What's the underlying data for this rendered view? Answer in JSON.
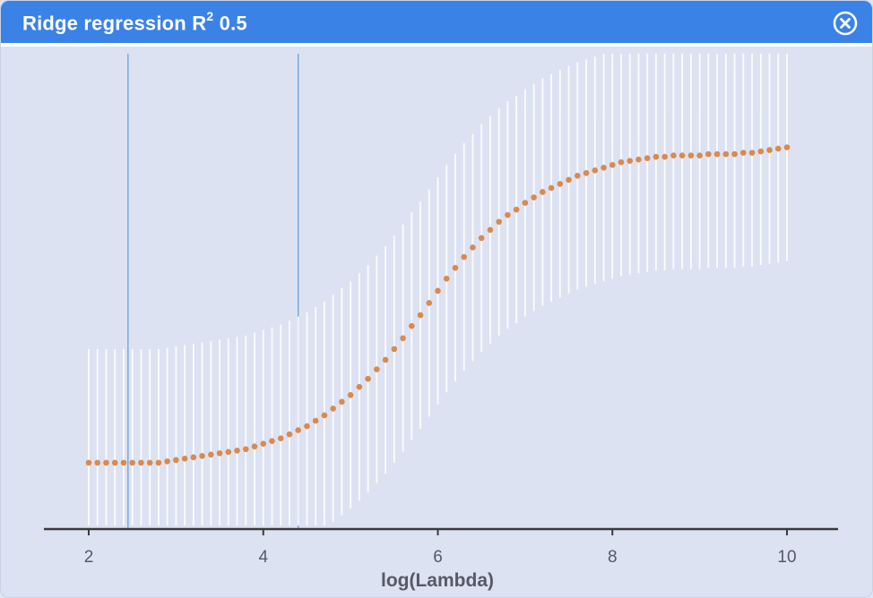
{
  "window": {
    "title_main": "Ridge regression R",
    "title_sup": "2",
    "title_value": " 0.5",
    "close_icon": "close-circle-icon"
  },
  "colors": {
    "titlebar": "#3b82e6",
    "background": "#dce2f1",
    "points": "#d98a4e",
    "errorbars": "#ffffff",
    "reference_lines": "#6ea0d8",
    "axis": "#3a3a3a"
  },
  "chart_data": {
    "type": "scatter",
    "title": "",
    "xlabel": "log(Lambda)",
    "ylabel": "",
    "xlim": [
      1.5,
      10.6
    ],
    "xticks": [
      2,
      4,
      6,
      8,
      10
    ],
    "xtick_labels": [
      "2",
      "4",
      "6",
      "8",
      "10"
    ],
    "grid": false,
    "vlines": [
      2.45,
      4.4
    ],
    "series": [
      {
        "x": [
          2.0,
          2.1,
          2.2,
          2.3,
          2.4,
          2.5,
          2.6,
          2.7,
          2.8,
          2.9,
          3.0,
          3.1,
          3.2,
          3.3,
          3.4,
          3.5,
          3.6,
          3.7,
          3.8,
          3.9,
          4.0,
          4.1,
          4.2,
          4.3,
          4.4,
          4.5,
          4.6,
          4.7,
          4.8,
          4.9,
          5.0,
          5.1,
          5.2,
          5.3,
          5.4,
          5.5,
          5.6,
          5.7,
          5.8,
          5.9,
          6.0,
          6.1,
          6.2,
          6.3,
          6.4,
          6.5,
          6.6,
          6.7,
          6.8,
          6.9,
          7.0,
          7.1,
          7.2,
          7.3,
          7.4,
          7.5,
          7.6,
          7.7,
          7.8,
          7.9,
          8.0,
          8.1,
          8.2,
          8.3,
          8.4,
          8.5,
          8.6,
          8.7,
          8.8,
          8.9,
          9.0,
          9.1,
          9.2,
          9.3,
          9.4,
          9.5,
          9.6,
          9.7,
          9.8,
          9.9,
          10.0
        ],
        "y": [
          0.1,
          0.1,
          0.1,
          0.1,
          0.1,
          0.1,
          0.1,
          0.1,
          0.1,
          0.11,
          0.12,
          0.13,
          0.14,
          0.15,
          0.16,
          0.17,
          0.18,
          0.19,
          0.2,
          0.22,
          0.24,
          0.26,
          0.28,
          0.31,
          0.34,
          0.37,
          0.41,
          0.45,
          0.5,
          0.55,
          0.6,
          0.66,
          0.72,
          0.79,
          0.86,
          0.94,
          1.02,
          1.11,
          1.19,
          1.28,
          1.37,
          1.46,
          1.54,
          1.62,
          1.69,
          1.76,
          1.82,
          1.88,
          1.93,
          1.97,
          2.02,
          2.06,
          2.1,
          2.13,
          2.16,
          2.19,
          2.22,
          2.24,
          2.26,
          2.28,
          2.3,
          2.32,
          2.33,
          2.34,
          2.35,
          2.36,
          2.36,
          2.37,
          2.37,
          2.37,
          2.37,
          2.38,
          2.38,
          2.38,
          2.38,
          2.39,
          2.39,
          2.4,
          2.41,
          2.42,
          2.43
        ],
        "error": 0.84
      }
    ]
  }
}
